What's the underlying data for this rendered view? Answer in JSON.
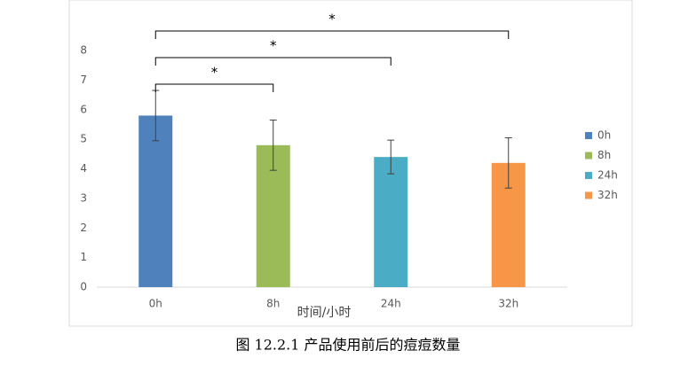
{
  "chart_data": {
    "type": "bar",
    "x_label": "时间/小时",
    "caption": "图 12.2.1 产品使用前后的痘痘数量",
    "categories": [
      "0h",
      "8h",
      "24h",
      "32h"
    ],
    "series": [
      {
        "name": "0h",
        "color": "#4f81bd"
      },
      {
        "name": "8h",
        "color": "#9bbb59"
      },
      {
        "name": "24h",
        "color": "#4bacc6"
      },
      {
        "name": "32h",
        "color": "#f79646"
      }
    ],
    "values": [
      5.8,
      4.8,
      4.4,
      4.2
    ],
    "errors": [
      0.85,
      0.85,
      0.57,
      0.85
    ],
    "comparisons": [
      {
        "pair": [
          "0h",
          "8h"
        ],
        "label": "*"
      },
      {
        "pair": [
          "0h",
          "24h"
        ],
        "label": "*"
      },
      {
        "pair": [
          "0h",
          "32h"
        ],
        "label": "*"
      }
    ],
    "ylim": [
      0,
      8
    ],
    "yticks": [
      0,
      1,
      2,
      3,
      4,
      5,
      6,
      7,
      8
    ],
    "legend": "right"
  }
}
